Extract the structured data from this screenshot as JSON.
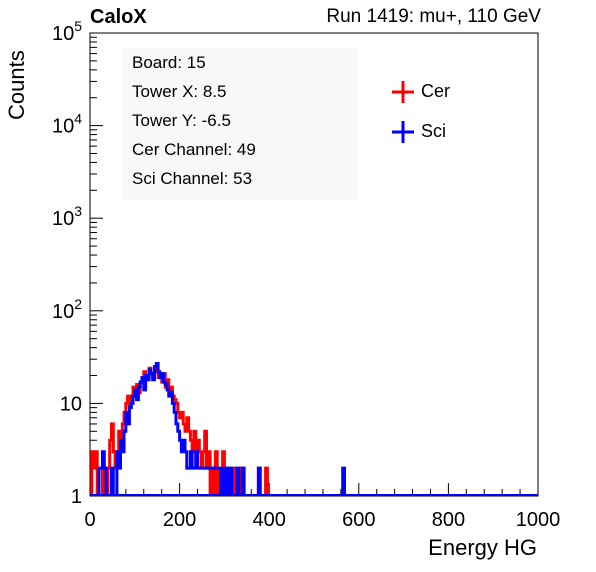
{
  "header": {
    "brand": "CaloX",
    "run": "Run 1419: mu+, 110 GeV"
  },
  "info_box": {
    "lines": [
      "Board: 15",
      "Tower X: 8.5",
      "Tower Y: -6.5",
      "Cer Channel: 49",
      "Sci Channel: 53"
    ]
  },
  "colors": {
    "cer": "#ff0000",
    "sci": "#0000ff",
    "axis": "#000000"
  },
  "chart_data": {
    "type": "line",
    "title": "",
    "xlabel": "Energy HG",
    "ylabel": "Counts",
    "xlim": [
      0,
      1000
    ],
    "ylim": [
      1,
      100000
    ],
    "yscale": "log",
    "grid": false,
    "legend": {
      "placement": "top-right",
      "entries": [
        "Cer",
        "Sci"
      ]
    },
    "x_ticks": [
      "0",
      "200",
      "400",
      "600",
      "800",
      "1000"
    ],
    "y_ticks": [
      {
        "value": 1,
        "label": "1"
      },
      {
        "value": 10,
        "label": "10"
      },
      {
        "value": 100,
        "label": "10^2"
      },
      {
        "value": 1000,
        "label": "10^3"
      },
      {
        "value": 10000,
        "label": "10^4"
      },
      {
        "value": 100000,
        "label": "10^5"
      }
    ],
    "bin_width": 4,
    "series": [
      {
        "name": "Cer",
        "color": "#ff0000",
        "points": [
          [
            4,
            3
          ],
          [
            8,
            2
          ],
          [
            12,
            3
          ],
          [
            28,
            2
          ],
          [
            40,
            2
          ],
          [
            44,
            4
          ],
          [
            48,
            6
          ],
          [
            52,
            3
          ],
          [
            56,
            2
          ],
          [
            60,
            3
          ],
          [
            64,
            5
          ],
          [
            68,
            4
          ],
          [
            72,
            6
          ],
          [
            76,
            8
          ],
          [
            80,
            10
          ],
          [
            84,
            12
          ],
          [
            88,
            9
          ],
          [
            92,
            12
          ],
          [
            96,
            15
          ],
          [
            100,
            12
          ],
          [
            104,
            16
          ],
          [
            108,
            13
          ],
          [
            112,
            17
          ],
          [
            116,
            19
          ],
          [
            120,
            22
          ],
          [
            124,
            18
          ],
          [
            128,
            20
          ],
          [
            132,
            24
          ],
          [
            136,
            21
          ],
          [
            140,
            19
          ],
          [
            144,
            24
          ],
          [
            148,
            22
          ],
          [
            152,
            19
          ],
          [
            156,
            20
          ],
          [
            160,
            17
          ],
          [
            164,
            21
          ],
          [
            168,
            15
          ],
          [
            172,
            18
          ],
          [
            176,
            13
          ],
          [
            180,
            15
          ],
          [
            184,
            12
          ],
          [
            188,
            11
          ],
          [
            192,
            10
          ],
          [
            196,
            8
          ],
          [
            200,
            7
          ],
          [
            204,
            8
          ],
          [
            208,
            6
          ],
          [
            212,
            5
          ],
          [
            216,
            7
          ],
          [
            220,
            5
          ],
          [
            224,
            4
          ],
          [
            228,
            3
          ],
          [
            232,
            5
          ],
          [
            236,
            3
          ],
          [
            240,
            4
          ],
          [
            244,
            3
          ],
          [
            248,
            2
          ],
          [
            252,
            3
          ],
          [
            256,
            5
          ],
          [
            260,
            2
          ],
          [
            264,
            3
          ],
          [
            272,
            2
          ],
          [
            280,
            3
          ],
          [
            288,
            2
          ],
          [
            296,
            3
          ],
          [
            304,
            2
          ],
          [
            320,
            2
          ],
          [
            336,
            2
          ],
          [
            376,
            2
          ],
          [
            392,
            2
          ]
        ]
      },
      {
        "name": "Sci",
        "color": "#0000ff",
        "points": [
          [
            20,
            2
          ],
          [
            24,
            2
          ],
          [
            28,
            3
          ],
          [
            32,
            2
          ],
          [
            48,
            2
          ],
          [
            60,
            3
          ],
          [
            64,
            2
          ],
          [
            68,
            4
          ],
          [
            72,
            3
          ],
          [
            76,
            5
          ],
          [
            80,
            8
          ],
          [
            84,
            6
          ],
          [
            88,
            9
          ],
          [
            92,
            10
          ],
          [
            96,
            12
          ],
          [
            100,
            14
          ],
          [
            104,
            11
          ],
          [
            108,
            15
          ],
          [
            112,
            17
          ],
          [
            116,
            19
          ],
          [
            120,
            14
          ],
          [
            124,
            20
          ],
          [
            128,
            18
          ],
          [
            132,
            23
          ],
          [
            136,
            21
          ],
          [
            140,
            18
          ],
          [
            144,
            25
          ],
          [
            148,
            27
          ],
          [
            152,
            22
          ],
          [
            156,
            19
          ],
          [
            160,
            21
          ],
          [
            164,
            17
          ],
          [
            168,
            16
          ],
          [
            172,
            14
          ],
          [
            176,
            12
          ],
          [
            180,
            13
          ],
          [
            184,
            10
          ],
          [
            188,
            8
          ],
          [
            192,
            6
          ],
          [
            196,
            5
          ],
          [
            200,
            4
          ],
          [
            204,
            3
          ],
          [
            208,
            4
          ],
          [
            212,
            3
          ],
          [
            216,
            2
          ],
          [
            220,
            2
          ],
          [
            224,
            3
          ],
          [
            228,
            2
          ],
          [
            232,
            2
          ],
          [
            236,
            3
          ],
          [
            240,
            2
          ],
          [
            244,
            2
          ],
          [
            248,
            2
          ],
          [
            252,
            2
          ],
          [
            256,
            2
          ],
          [
            260,
            2
          ],
          [
            264,
            2
          ],
          [
            268,
            2
          ],
          [
            272,
            2
          ],
          [
            276,
            2
          ],
          [
            280,
            2
          ],
          [
            284,
            2
          ],
          [
            288,
            2
          ],
          [
            296,
            2
          ],
          [
            304,
            2
          ],
          [
            312,
            2
          ],
          [
            328,
            2
          ],
          [
            340,
            2
          ],
          [
            376,
            2
          ],
          [
            564,
            2
          ]
        ]
      }
    ]
  }
}
